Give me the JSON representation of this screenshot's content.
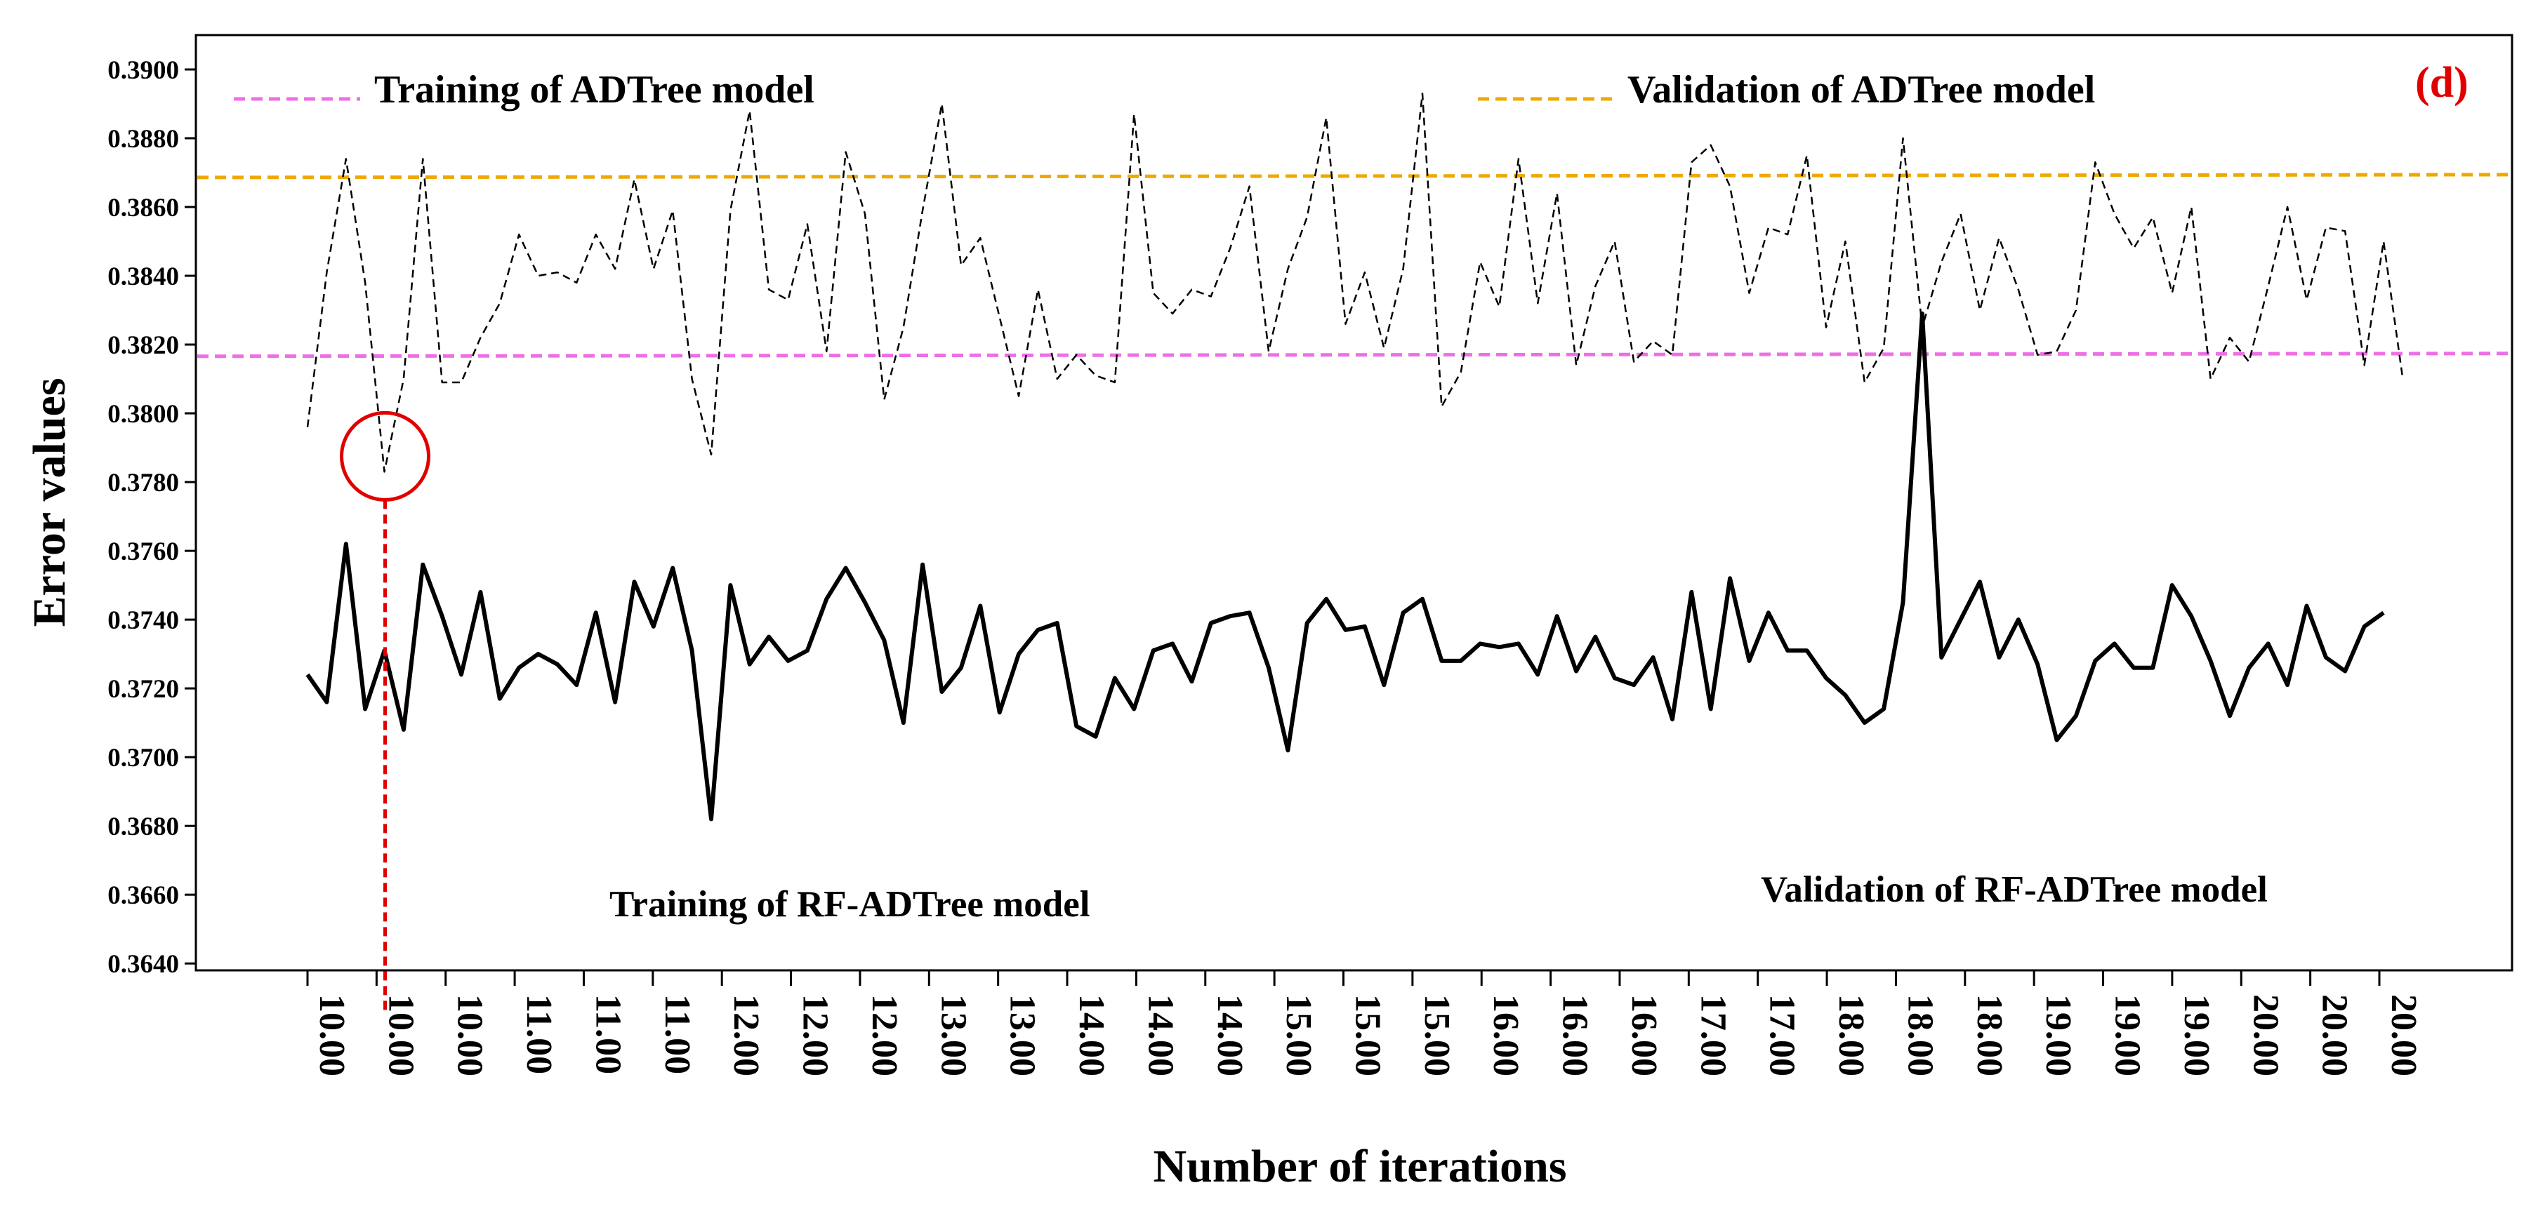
{
  "chart_data": {
    "type": "line",
    "panel_label": "(d)",
    "xlabel": "Number of iterations",
    "ylabel": "Error values",
    "ylim": [
      0.3638,
      0.391
    ],
    "yticks": [
      "0.3640",
      "0.3660",
      "0.3680",
      "0.3700",
      "0.3720",
      "0.3740",
      "0.3760",
      "0.3780",
      "0.3800",
      "0.3820",
      "0.3840",
      "0.3860",
      "0.3880",
      "0.3900"
    ],
    "ytick_values": [
      0.364,
      0.366,
      0.368,
      0.37,
      0.372,
      0.374,
      0.376,
      0.378,
      0.38,
      0.382,
      0.384,
      0.386,
      0.388,
      0.39
    ],
    "xticks": [
      "10.00",
      "10.00",
      "10.00",
      "11.00",
      "11.00",
      "11.00",
      "12.00",
      "12.00",
      "12.00",
      "13.00",
      "13.00",
      "14.00",
      "14.00",
      "14.00",
      "15.00",
      "15.00",
      "15.00",
      "16.00",
      "16.00",
      "16.00",
      "17.00",
      "17.00",
      "18.00",
      "18.00",
      "18.00",
      "19.00",
      "19.00",
      "19.00",
      "20.00",
      "20.00",
      "20.00"
    ],
    "iteration_count": 109,
    "reference_lines": [
      {
        "name": "Training of ADTree model",
        "value": 0.3817,
        "color": "#ee6ee6",
        "style": "dashed"
      },
      {
        "name": "Validation of ADTree model",
        "value": 0.3869,
        "color": "#f0a800",
        "style": "dashed"
      }
    ],
    "series": [
      {
        "name": "Training of RF-ADTree model",
        "color": "#000000",
        "style": "solid",
        "values": [
          0.3724,
          0.3716,
          0.3762,
          0.3714,
          0.3731,
          0.3708,
          0.3756,
          0.3741,
          0.3724,
          0.3748,
          0.3717,
          0.3726,
          0.373,
          0.3727,
          0.3721,
          0.3742,
          0.3716,
          0.3751,
          0.3738,
          0.3755,
          0.3731,
          0.3682,
          0.375,
          0.3727,
          0.3735,
          0.3728,
          0.3731,
          0.3746,
          0.3755,
          0.3745,
          0.3734,
          0.371,
          0.3756,
          0.3719,
          0.3726,
          0.3744,
          0.3713,
          0.373,
          0.3737,
          0.3739,
          0.3709,
          0.3706,
          0.3723,
          0.3714,
          0.3731,
          0.3733,
          0.3722,
          0.3739,
          0.3741,
          0.3742,
          0.3726,
          0.3702,
          0.3739,
          0.3746,
          0.3737,
          0.3738,
          0.3721,
          0.3742,
          0.3746,
          0.3728,
          0.3728,
          0.3733,
          0.3732,
          0.3733,
          0.3724,
          0.3741,
          0.3725,
          0.3735,
          0.3723,
          0.3721,
          0.3729,
          0.3711,
          0.3748,
          0.3714,
          0.3752,
          0.3728,
          0.3742,
          0.3731,
          0.3731,
          0.3723,
          0.3718,
          0.371,
          0.3714,
          0.3745,
          0.3829,
          0.3729,
          0.374,
          0.3751,
          0.3729,
          0.374,
          0.3727,
          0.3705,
          0.3712,
          0.3728,
          0.3733,
          0.3726,
          0.3726,
          0.375,
          0.3741,
          0.3728,
          0.3712,
          0.3726,
          0.3733,
          0.3721,
          0.3744,
          0.3729,
          0.3725,
          0.3738,
          0.3742
        ]
      },
      {
        "name": "Validation of RF-ADTree model",
        "color": "#000000",
        "style": "dashed",
        "values": [
          0.3796,
          0.3841,
          0.3874,
          0.3838,
          0.3783,
          0.381,
          0.3874,
          0.3809,
          0.3809,
          0.3822,
          0.3832,
          0.3852,
          0.384,
          0.3841,
          0.3838,
          0.3852,
          0.3842,
          0.3868,
          0.3842,
          0.3859,
          0.381,
          0.3788,
          0.3859,
          0.3888,
          0.3836,
          0.3833,
          0.3855,
          0.3818,
          0.3876,
          0.3858,
          0.3804,
          0.3825,
          0.3859,
          0.389,
          0.3843,
          0.3851,
          0.3828,
          0.3805,
          0.3836,
          0.381,
          0.3817,
          0.3811,
          0.3809,
          0.3887,
          0.3835,
          0.3829,
          0.3836,
          0.3834,
          0.3848,
          0.3866,
          0.3818,
          0.3842,
          0.3857,
          0.3886,
          0.3826,
          0.3841,
          0.3819,
          0.3842,
          0.3893,
          0.3802,
          0.3812,
          0.3844,
          0.3831,
          0.3874,
          0.3832,
          0.3864,
          0.3814,
          0.3837,
          0.385,
          0.3815,
          0.3821,
          0.3817,
          0.3873,
          0.3878,
          0.3866,
          0.3835,
          0.3854,
          0.3852,
          0.3875,
          0.3825,
          0.385,
          0.3809,
          0.3819,
          0.388,
          0.3825,
          0.3844,
          0.3858,
          0.383,
          0.3851,
          0.3836,
          0.3817,
          0.3818,
          0.383,
          0.3873,
          0.3858,
          0.3848,
          0.3857,
          0.3835,
          0.386,
          0.381,
          0.3822,
          0.3815,
          0.3837,
          0.386,
          0.3833,
          0.3854,
          0.3853,
          0.3814,
          0.385,
          0.381
        ]
      }
    ],
    "annotation": {
      "iteration_index": 4,
      "color": "#e00000"
    }
  }
}
